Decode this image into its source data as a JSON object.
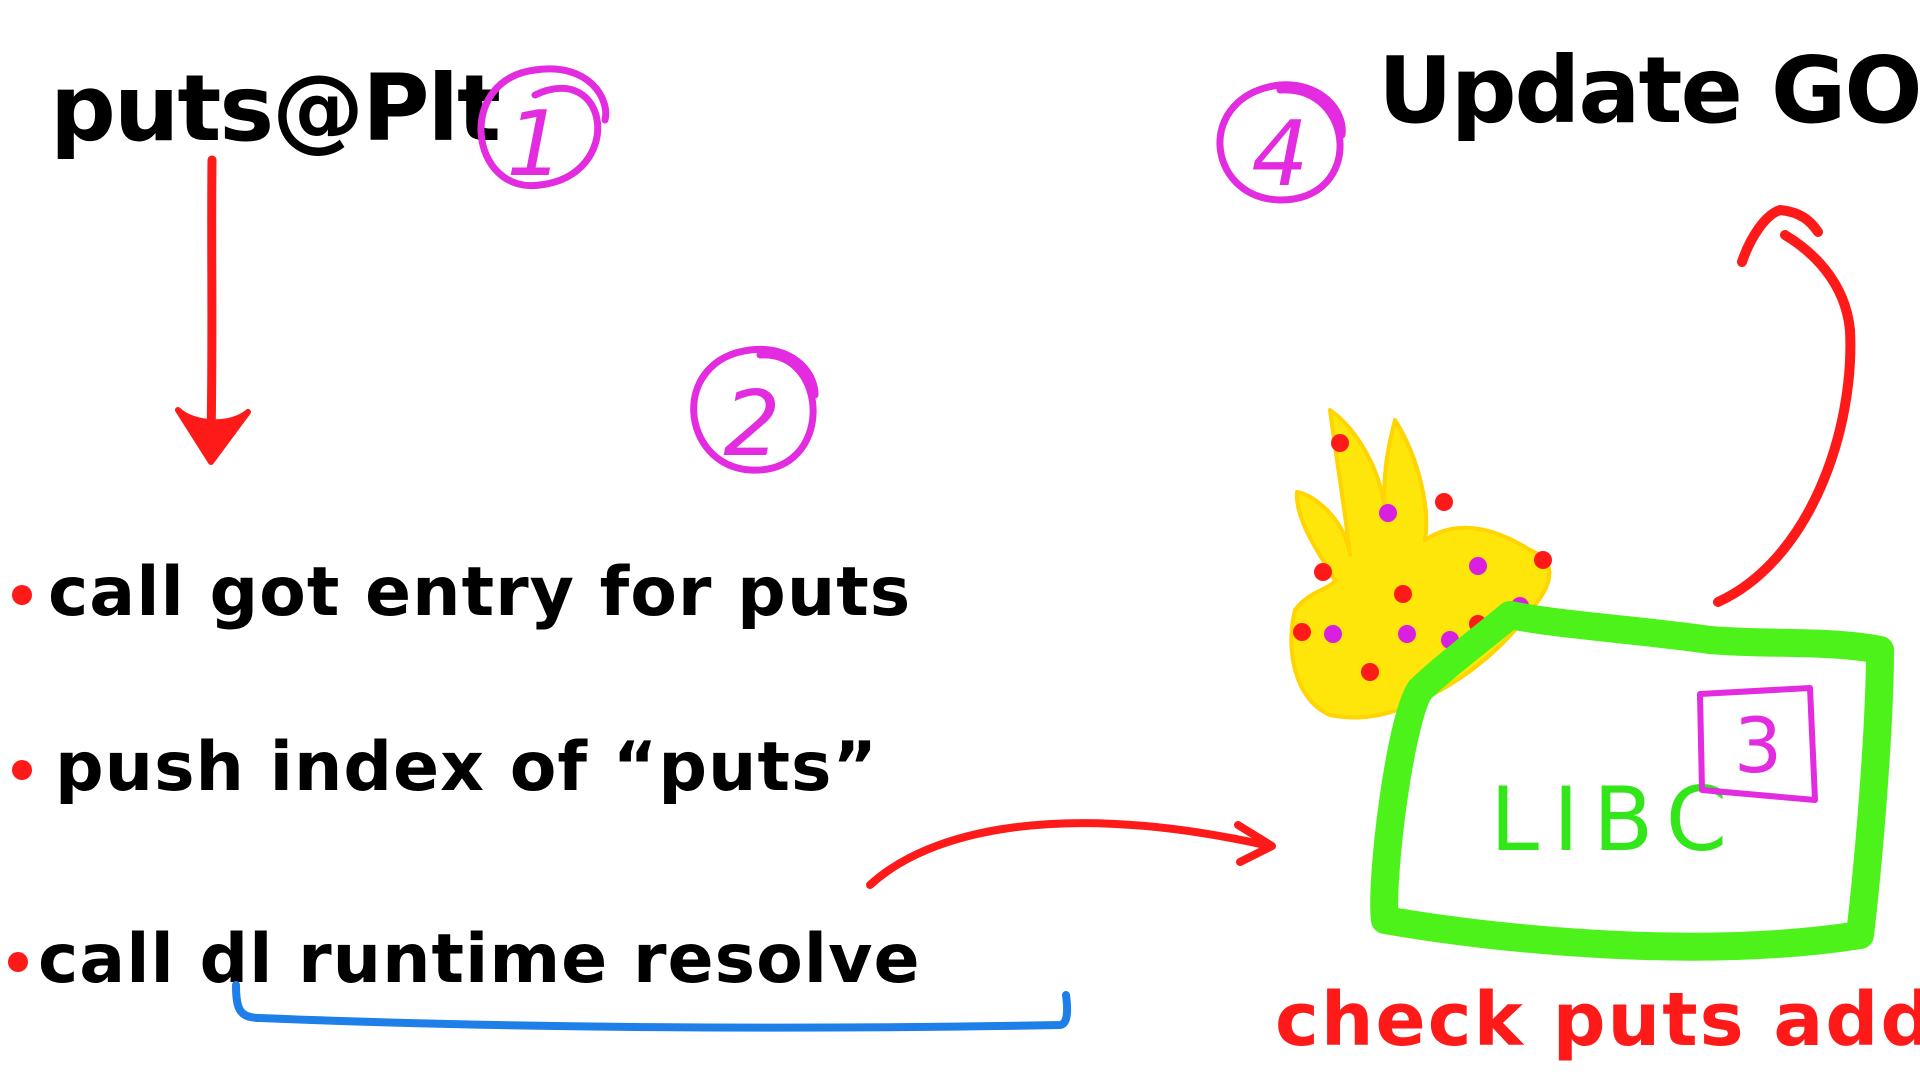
{
  "labels": {
    "plt_label": "puts@Plt",
    "got_label": "Update GOT",
    "libc_label": "LIBC",
    "libc_note": "check puts add"
  },
  "steps": [
    {
      "text": "call got entry for puts"
    },
    {
      "text": "push index of “puts”"
    },
    {
      "text": "call dl runtime resolve"
    }
  ],
  "badges": {
    "one": "1",
    "two": "2",
    "three": "3",
    "four": "4"
  },
  "colors": {
    "ink": "#000000",
    "arrow": "#ff1a1a",
    "badge": "#e32be0",
    "libc_box": "#4cf21a",
    "underline": "#1f7fe8",
    "flame": "#ffe60a",
    "bullet": "#ff1a1a"
  },
  "icons": {
    "flame": "flame-icon",
    "bullet": "dot-bullet-icon"
  }
}
